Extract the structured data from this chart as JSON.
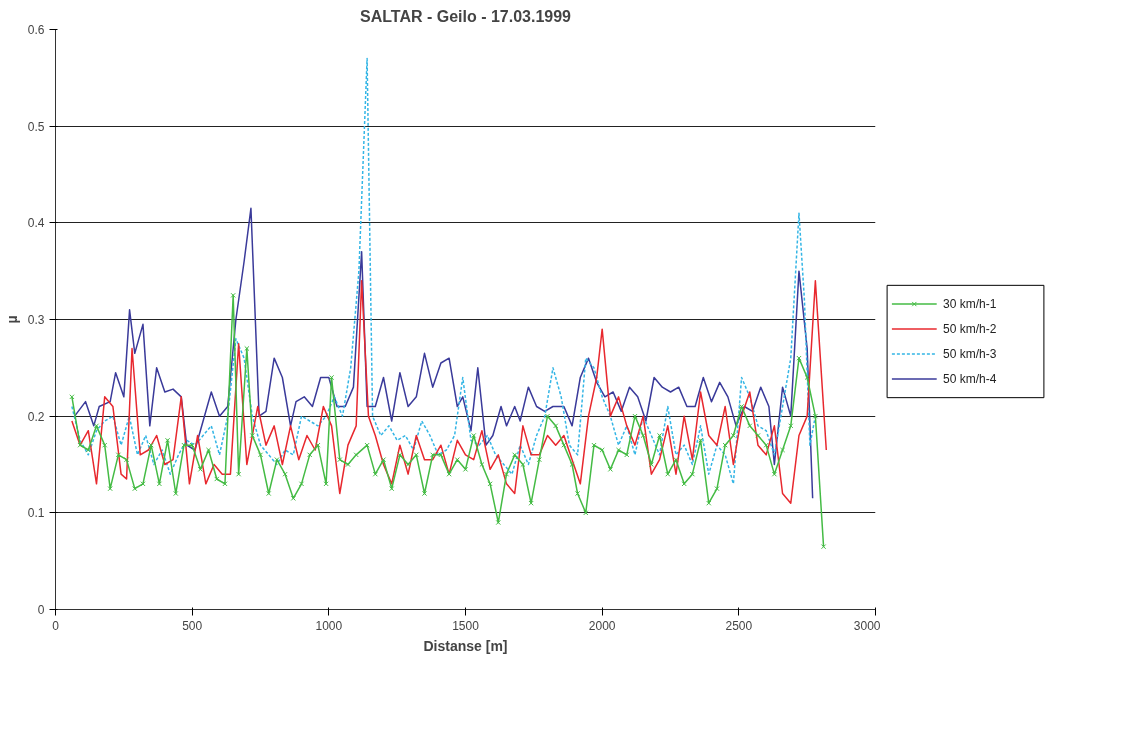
{
  "chart_data": {
    "type": "line",
    "title": "SALTAR - Geilo - 17.03.1999",
    "xlabel": "Distanse [m]",
    "ylabel": "µ",
    "xlim": [
      0,
      3000
    ],
    "xticks": [
      0,
      500,
      1000,
      1500,
      2000,
      2500,
      3000
    ],
    "ylim": [
      0,
      0.6
    ],
    "yticks": [
      0,
      0.1,
      0.2,
      0.3,
      0.4,
      0.5,
      0.6
    ],
    "grid": "y",
    "legend": "right",
    "series": [
      {
        "name": "30 km/h-1",
        "color": "#44bb44",
        "marker": "cross",
        "line_style": "solid",
        "x": [
          60,
          90,
          120,
          150,
          180,
          200,
          230,
          260,
          290,
          320,
          350,
          380,
          410,
          440,
          470,
          500,
          530,
          560,
          590,
          620,
          650,
          670,
          700,
          720,
          750,
          780,
          810,
          840,
          870,
          900,
          930,
          960,
          990,
          1010,
          1040,
          1070,
          1100,
          1140,
          1170,
          1200,
          1230,
          1260,
          1290,
          1320,
          1350,
          1380,
          1410,
          1440,
          1470,
          1500,
          1530,
          1560,
          1590,
          1620,
          1650,
          1680,
          1710,
          1740,
          1770,
          1800,
          1830,
          1860,
          1890,
          1910,
          1940,
          1970,
          2000,
          2030,
          2060,
          2090,
          2120,
          2150,
          2180,
          2210,
          2240,
          2270,
          2300,
          2330,
          2360,
          2390,
          2420,
          2450,
          2480,
          2510,
          2540,
          2570,
          2600,
          2630,
          2660,
          2690,
          2720,
          2750,
          2780,
          2810
        ],
        "values": [
          0.22,
          0.17,
          0.165,
          0.19,
          0.17,
          0.125,
          0.16,
          0.155,
          0.125,
          0.13,
          0.17,
          0.13,
          0.175,
          0.12,
          0.17,
          0.17,
          0.145,
          0.165,
          0.135,
          0.13,
          0.325,
          0.14,
          0.27,
          0.18,
          0.16,
          0.12,
          0.155,
          0.14,
          0.115,
          0.13,
          0.16,
          0.17,
          0.13,
          0.24,
          0.155,
          0.15,
          0.16,
          0.17,
          0.14,
          0.155,
          0.125,
          0.16,
          0.15,
          0.16,
          0.12,
          0.16,
          0.16,
          0.14,
          0.155,
          0.145,
          0.18,
          0.15,
          0.13,
          0.09,
          0.14,
          0.16,
          0.15,
          0.11,
          0.155,
          0.2,
          0.19,
          0.17,
          0.15,
          0.12,
          0.1,
          0.17,
          0.165,
          0.145,
          0.165,
          0.16,
          0.2,
          0.18,
          0.15,
          0.18,
          0.14,
          0.155,
          0.13,
          0.14,
          0.175,
          0.11,
          0.125,
          0.17,
          0.18,
          0.21,
          0.19,
          0.18,
          0.17,
          0.14,
          0.165,
          0.19,
          0.26,
          0.24,
          0.2,
          0.065
        ]
      },
      {
        "name": "50 km/h-2",
        "color": "#e8282e",
        "marker": "none",
        "line_style": "solid",
        "x": [
          60,
          90,
          120,
          150,
          180,
          210,
          240,
          260,
          280,
          310,
          340,
          370,
          400,
          430,
          460,
          490,
          520,
          550,
          580,
          610,
          640,
          670,
          700,
          740,
          770,
          800,
          830,
          860,
          890,
          920,
          950,
          980,
          1010,
          1040,
          1070,
          1100,
          1120,
          1145,
          1170,
          1200,
          1230,
          1260,
          1290,
          1320,
          1350,
          1380,
          1410,
          1440,
          1470,
          1500,
          1530,
          1560,
          1590,
          1620,
          1650,
          1680,
          1710,
          1740,
          1770,
          1800,
          1830,
          1860,
          1890,
          1920,
          1950,
          1980,
          2000,
          2030,
          2060,
          2090,
          2120,
          2150,
          2180,
          2210,
          2240,
          2270,
          2300,
          2330,
          2360,
          2390,
          2420,
          2450,
          2480,
          2510,
          2540,
          2570,
          2600,
          2630,
          2660,
          2690,
          2720,
          2750,
          2780,
          2820
        ],
        "values": [
          0.195,
          0.17,
          0.185,
          0.13,
          0.22,
          0.21,
          0.14,
          0.135,
          0.27,
          0.16,
          0.165,
          0.18,
          0.15,
          0.155,
          0.22,
          0.13,
          0.18,
          0.13,
          0.15,
          0.14,
          0.14,
          0.275,
          0.15,
          0.21,
          0.17,
          0.19,
          0.15,
          0.19,
          0.155,
          0.18,
          0.165,
          0.21,
          0.19,
          0.12,
          0.17,
          0.19,
          0.34,
          0.2,
          0.18,
          0.15,
          0.13,
          0.17,
          0.14,
          0.18,
          0.155,
          0.155,
          0.17,
          0.14,
          0.175,
          0.16,
          0.155,
          0.185,
          0.145,
          0.16,
          0.13,
          0.12,
          0.19,
          0.16,
          0.16,
          0.18,
          0.17,
          0.18,
          0.155,
          0.13,
          0.2,
          0.24,
          0.29,
          0.2,
          0.22,
          0.19,
          0.17,
          0.2,
          0.14,
          0.155,
          0.19,
          0.14,
          0.2,
          0.155,
          0.225,
          0.18,
          0.17,
          0.21,
          0.15,
          0.2,
          0.225,
          0.17,
          0.16,
          0.19,
          0.12,
          0.11,
          0.18,
          0.2,
          0.34,
          0.165
        ]
      },
      {
        "name": "50 km/h-3",
        "color": "#33b5e5",
        "marker": "none",
        "line_style": "dashed",
        "x": [
          60,
          90,
          120,
          150,
          180,
          210,
          240,
          270,
          300,
          330,
          360,
          390,
          420,
          450,
          480,
          510,
          540,
          570,
          600,
          630,
          660,
          690,
          720,
          750,
          780,
          810,
          840,
          870,
          900,
          930,
          960,
          990,
          1020,
          1050,
          1080,
          1110,
          1140,
          1160,
          1190,
          1220,
          1250,
          1280,
          1310,
          1340,
          1370,
          1400,
          1430,
          1460,
          1490,
          1520,
          1550,
          1580,
          1610,
          1640,
          1670,
          1700,
          1730,
          1760,
          1790,
          1820,
          1850,
          1880,
          1910,
          1940,
          1970,
          2000,
          2030,
          2060,
          2090,
          2120,
          2150,
          2180,
          2210,
          2240,
          2270,
          2300,
          2330,
          2360,
          2390,
          2420,
          2450,
          2480,
          2510,
          2540,
          2570,
          2600,
          2630,
          2660,
          2690,
          2720,
          2740,
          2760,
          2780
        ],
        "values": [
          0.21,
          0.175,
          0.16,
          0.185,
          0.195,
          0.2,
          0.17,
          0.2,
          0.16,
          0.18,
          0.15,
          0.165,
          0.14,
          0.16,
          0.175,
          0.17,
          0.18,
          0.19,
          0.16,
          0.2,
          0.28,
          0.26,
          0.2,
          0.17,
          0.16,
          0.15,
          0.165,
          0.16,
          0.2,
          0.195,
          0.19,
          0.2,
          0.22,
          0.2,
          0.25,
          0.35,
          0.57,
          0.2,
          0.18,
          0.19,
          0.175,
          0.18,
          0.165,
          0.195,
          0.18,
          0.16,
          0.165,
          0.18,
          0.24,
          0.175,
          0.17,
          0.18,
          0.16,
          0.15,
          0.14,
          0.17,
          0.15,
          0.18,
          0.2,
          0.25,
          0.22,
          0.17,
          0.16,
          0.26,
          0.25,
          0.22,
          0.2,
          0.17,
          0.19,
          0.16,
          0.2,
          0.18,
          0.16,
          0.21,
          0.16,
          0.17,
          0.15,
          0.19,
          0.14,
          0.17,
          0.16,
          0.13,
          0.24,
          0.22,
          0.19,
          0.185,
          0.16,
          0.21,
          0.26,
          0.41,
          0.32,
          0.17,
          0.2
        ]
      },
      {
        "name": "50 km/h-4",
        "color": "#3a3a9a",
        "marker": "none",
        "line_style": "solid",
        "x": [
          70,
          110,
          140,
          160,
          200,
          220,
          250,
          271,
          290,
          320,
          345,
          370,
          400,
          430,
          460,
          480,
          510,
          540,
          570,
          600,
          630,
          660,
          690,
          715,
          745,
          770,
          800,
          830,
          860,
          880,
          910,
          940,
          970,
          1000,
          1030,
          1060,
          1090,
          1120,
          1140,
          1170,
          1200,
          1230,
          1260,
          1290,
          1320,
          1350,
          1380,
          1410,
          1440,
          1470,
          1490,
          1520,
          1545,
          1575,
          1600,
          1630,
          1650,
          1680,
          1700,
          1730,
          1760,
          1790,
          1820,
          1860,
          1890,
          1920,
          1950,
          1980,
          2010,
          2040,
          2070,
          2100,
          2130,
          2160,
          2190,
          2220,
          2250,
          2280,
          2310,
          2340,
          2370,
          2400,
          2430,
          2460,
          2490,
          2520,
          2550,
          2580,
          2610,
          2630,
          2660,
          2690,
          2720,
          2750,
          2770
        ],
        "values": [
          0.2,
          0.215,
          0.19,
          0.21,
          0.215,
          0.245,
          0.22,
          0.31,
          0.265,
          0.295,
          0.19,
          0.25,
          0.225,
          0.228,
          0.22,
          0.17,
          0.165,
          0.195,
          0.225,
          0.2,
          0.21,
          0.3,
          0.36,
          0.415,
          0.2,
          0.205,
          0.26,
          0.24,
          0.19,
          0.215,
          0.22,
          0.21,
          0.24,
          0.24,
          0.21,
          0.21,
          0.23,
          0.37,
          0.21,
          0.21,
          0.24,
          0.195,
          0.245,
          0.21,
          0.22,
          0.265,
          0.23,
          0.255,
          0.26,
          0.21,
          0.22,
          0.185,
          0.25,
          0.17,
          0.18,
          0.21,
          0.19,
          0.21,
          0.195,
          0.23,
          0.21,
          0.205,
          0.21,
          0.21,
          0.19,
          0.24,
          0.26,
          0.235,
          0.22,
          0.225,
          0.205,
          0.23,
          0.22,
          0.195,
          0.24,
          0.23,
          0.225,
          0.23,
          0.21,
          0.21,
          0.24,
          0.215,
          0.235,
          0.22,
          0.19,
          0.21,
          0.205,
          0.23,
          0.21,
          0.15,
          0.23,
          0.2,
          0.35,
          0.27,
          0.115
        ]
      }
    ]
  }
}
